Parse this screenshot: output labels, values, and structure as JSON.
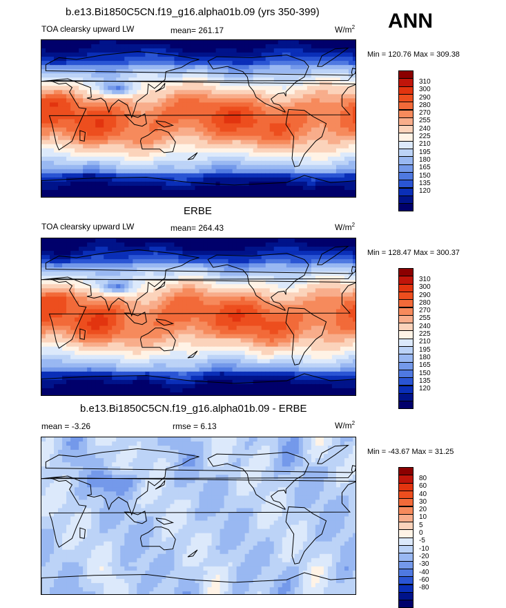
{
  "header": {
    "season": "ANN"
  },
  "panels": [
    {
      "title": "b.e13.Bi1850C5CN.f19_g16.alpha01b.09 (yrs 350-399)",
      "left_label": "TOA clearsky upward LW",
      "mid_label": "mean= 261.17",
      "units": "W/m",
      "units_sup": "2",
      "minmax": "Min = 120.76 Max = 309.38",
      "colorbar": {
        "colors": [
          "#8b0000",
          "#c0150a",
          "#e2340f",
          "#ed4e1e",
          "#f26a39",
          "#f68a5c",
          "#f8ad8b",
          "#fbd3bb",
          "#fff3e6",
          "#dce9fb",
          "#bcd3f7",
          "#99b8f2",
          "#7499ea",
          "#4f79e1",
          "#2a55d4",
          "#0a2fb8",
          "#00138a",
          "#00006b"
        ],
        "ticks": [
          "310",
          "300",
          "290",
          "280",
          "270",
          "255",
          "240",
          "225",
          "210",
          "195",
          "180",
          "165",
          "150",
          "135",
          "120"
        ]
      }
    },
    {
      "title": "ERBE",
      "left_label": "TOA clearsky upward LW",
      "mid_label": "mean= 264.43",
      "units": "W/m",
      "units_sup": "2",
      "minmax": "Min = 128.47 Max = 300.37",
      "colorbar": {
        "colors": [
          "#8b0000",
          "#c0150a",
          "#e2340f",
          "#ed4e1e",
          "#f26a39",
          "#f68a5c",
          "#f8ad8b",
          "#fbd3bb",
          "#fff3e6",
          "#dce9fb",
          "#bcd3f7",
          "#99b8f2",
          "#7499ea",
          "#4f79e1",
          "#2a55d4",
          "#0a2fb8",
          "#00138a",
          "#00006b"
        ],
        "ticks": [
          "310",
          "300",
          "290",
          "280",
          "270",
          "255",
          "240",
          "225",
          "210",
          "195",
          "180",
          "165",
          "150",
          "135",
          "120"
        ]
      }
    },
    {
      "title": "b.e13.Bi1850C5CN.f19_g16.alpha01b.09 - ERBE",
      "left_label": "mean =  -3.26",
      "mid_label": "rmse =   6.13",
      "units": "W/m",
      "units_sup": "2",
      "minmax": "Min = -43.67 Max =  31.25",
      "colorbar": {
        "colors": [
          "#8b0000",
          "#c0150a",
          "#e2340f",
          "#ed4e1e",
          "#f26a39",
          "#f68a5c",
          "#f8ad8b",
          "#fbd3bb",
          "#fff3e6",
          "#dce9fb",
          "#bcd3f7",
          "#99b8f2",
          "#7499ea",
          "#4f79e1",
          "#2a55d4",
          "#0a2fb8",
          "#00138a",
          "#00006b"
        ],
        "ticks": [
          "80",
          "60",
          "40",
          "30",
          "20",
          "10",
          "5",
          "0",
          "-5",
          "-10",
          "-20",
          "-30",
          "-40",
          "-60",
          "-80"
        ]
      }
    }
  ],
  "chart_data": [
    {
      "type": "heatmap",
      "title": "b.e13.Bi1850C5CN.f19_g16.alpha01b.09 (yrs 350-399)",
      "variable": "TOA clearsky upward LW",
      "units": "W/m2",
      "mean": 261.17,
      "min": 120.76,
      "max": 309.38,
      "levels": [
        120,
        135,
        150,
        165,
        180,
        195,
        210,
        225,
        240,
        255,
        270,
        280,
        290,
        300,
        310
      ]
    },
    {
      "type": "heatmap",
      "title": "ERBE",
      "variable": "TOA clearsky upward LW",
      "units": "W/m2",
      "mean": 264.43,
      "min": 128.47,
      "max": 300.37,
      "levels": [
        120,
        135,
        150,
        165,
        180,
        195,
        210,
        225,
        240,
        255,
        270,
        280,
        290,
        300,
        310
      ]
    },
    {
      "type": "heatmap",
      "title": "b.e13.Bi1850C5CN.f19_g16.alpha01b.09 - ERBE",
      "units": "W/m2",
      "mean": -3.26,
      "rmse": 6.13,
      "min": -43.67,
      "max": 31.25,
      "levels": [
        -80,
        -60,
        -40,
        -30,
        -20,
        -10,
        -5,
        0,
        5,
        10,
        20,
        30,
        40,
        60,
        80
      ]
    }
  ]
}
